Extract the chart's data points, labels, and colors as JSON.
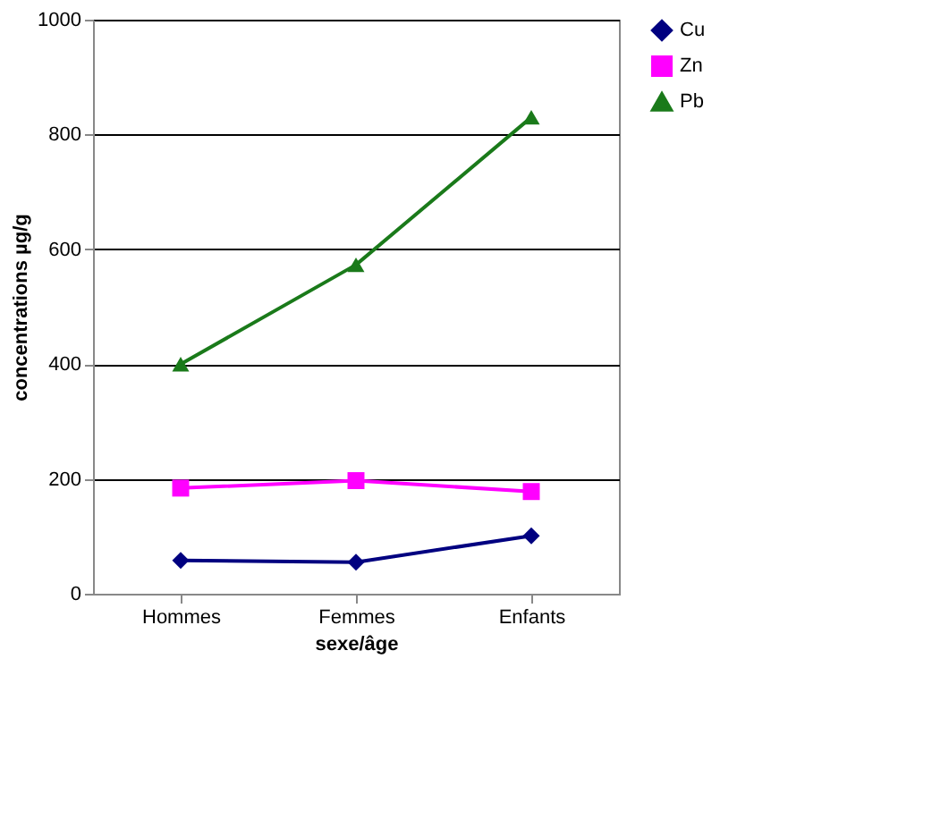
{
  "chart_data": {
    "type": "line",
    "xlabel": "sexe/âge",
    "ylabel": "concentrations µg/g",
    "categories": [
      "Hommes",
      "Femmes",
      "Enfants"
    ],
    "series": [
      {
        "name": "Cu",
        "color": "#000080",
        "marker": "diamond",
        "values": [
          58,
          55,
          101
        ]
      },
      {
        "name": "Zn",
        "color": "#ff00ff",
        "marker": "square",
        "values": [
          184,
          197,
          178
        ]
      },
      {
        "name": "Pb",
        "color": "#1a7a1a",
        "marker": "triangle",
        "values": [
          400,
          573,
          830
        ]
      }
    ],
    "ylim": [
      0,
      1000
    ],
    "yticks": [
      0,
      200,
      400,
      600,
      800,
      1000
    ],
    "grid": "y",
    "legend": "right",
    "line_style": "solid"
  }
}
